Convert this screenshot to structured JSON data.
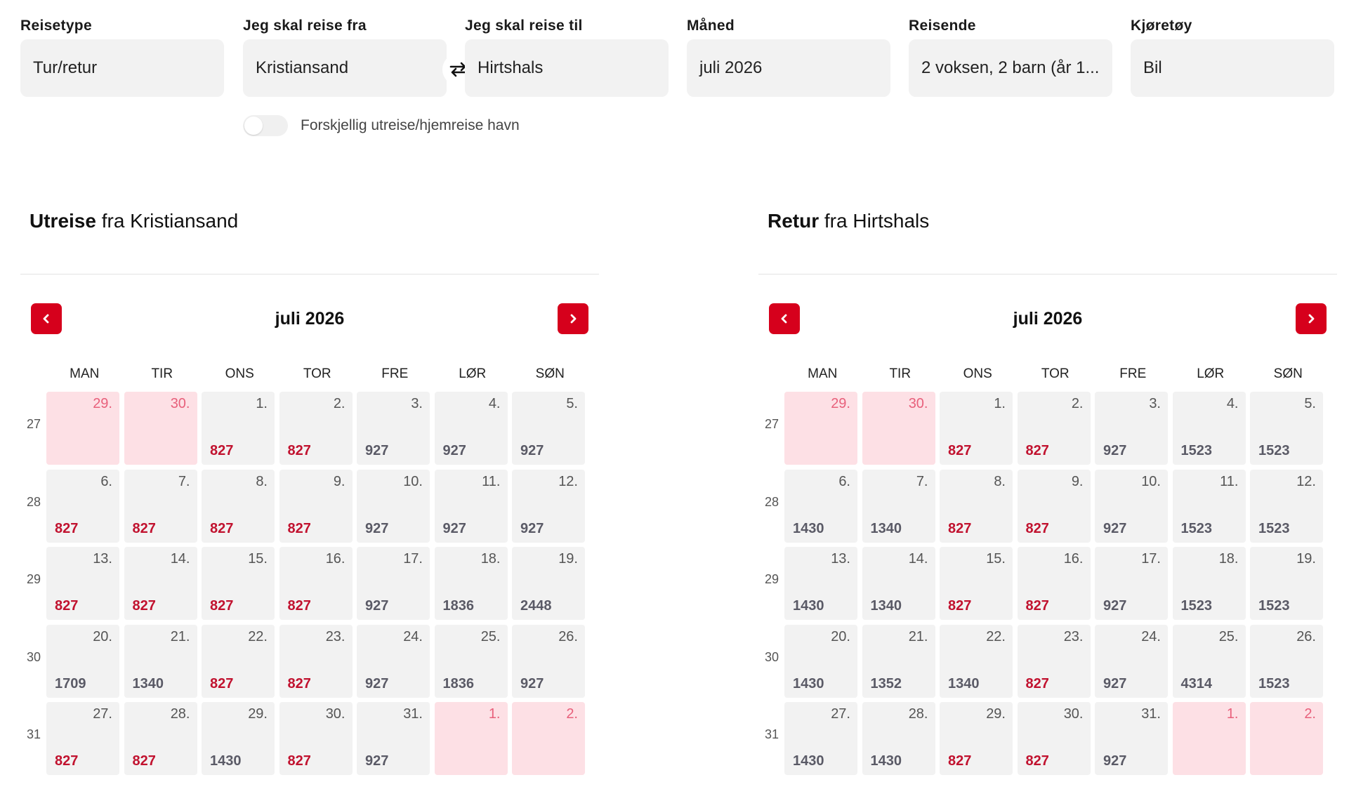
{
  "search": {
    "trip_type": {
      "label": "Reisetype",
      "value": "Tur/retur"
    },
    "from": {
      "label": "Jeg skal reise fra",
      "value": "Kristiansand"
    },
    "to": {
      "label": "Jeg skal reise til",
      "value": "Hirtshals"
    },
    "month": {
      "label": "Måned",
      "value": "juli 2026"
    },
    "travellers": {
      "label": "Reisende",
      "value": "2 voksen, 2 barn (år 1..."
    },
    "vehicle": {
      "label": "Kjøretøy",
      "value": "Bil"
    },
    "swap_icon": "swap-arrows-icon",
    "different_port_toggle": {
      "label": "Forskjellig utreise/hjemreise havn",
      "on": false
    }
  },
  "colors": {
    "accent": "#d6001c",
    "low_price": "#c1122f",
    "normal_price": "#5a5a66",
    "unavailable_bg": "#fde0e5",
    "day_bg": "#f2f2f2"
  },
  "weekdays": [
    "MAN",
    "TIR",
    "ONS",
    "TOR",
    "FRE",
    "LØR",
    "SØN"
  ],
  "outbound": {
    "title_bold": "Utreise",
    "title_rest": "fra Kristiansand",
    "month_label": "juli 2026",
    "prev_icon": "chevron-left-icon",
    "next_icon": "chevron-right-icon",
    "weeks": [
      {
        "num": "27",
        "days": [
          {
            "d": "29.",
            "price": "",
            "disabled": true,
            "low": false
          },
          {
            "d": "30.",
            "price": "",
            "disabled": true,
            "low": false
          },
          {
            "d": "1.",
            "price": "827",
            "disabled": false,
            "low": true
          },
          {
            "d": "2.",
            "price": "827",
            "disabled": false,
            "low": true
          },
          {
            "d": "3.",
            "price": "927",
            "disabled": false,
            "low": false
          },
          {
            "d": "4.",
            "price": "927",
            "disabled": false,
            "low": false
          },
          {
            "d": "5.",
            "price": "927",
            "disabled": false,
            "low": false
          }
        ]
      },
      {
        "num": "28",
        "days": [
          {
            "d": "6.",
            "price": "827",
            "disabled": false,
            "low": true
          },
          {
            "d": "7.",
            "price": "827",
            "disabled": false,
            "low": true
          },
          {
            "d": "8.",
            "price": "827",
            "disabled": false,
            "low": true
          },
          {
            "d": "9.",
            "price": "827",
            "disabled": false,
            "low": true
          },
          {
            "d": "10.",
            "price": "927",
            "disabled": false,
            "low": false
          },
          {
            "d": "11.",
            "price": "927",
            "disabled": false,
            "low": false
          },
          {
            "d": "12.",
            "price": "927",
            "disabled": false,
            "low": false
          }
        ]
      },
      {
        "num": "29",
        "days": [
          {
            "d": "13.",
            "price": "827",
            "disabled": false,
            "low": true
          },
          {
            "d": "14.",
            "price": "827",
            "disabled": false,
            "low": true
          },
          {
            "d": "15.",
            "price": "827",
            "disabled": false,
            "low": true
          },
          {
            "d": "16.",
            "price": "827",
            "disabled": false,
            "low": true
          },
          {
            "d": "17.",
            "price": "927",
            "disabled": false,
            "low": false
          },
          {
            "d": "18.",
            "price": "1836",
            "disabled": false,
            "low": false
          },
          {
            "d": "19.",
            "price": "2448",
            "disabled": false,
            "low": false
          }
        ]
      },
      {
        "num": "30",
        "days": [
          {
            "d": "20.",
            "price": "1709",
            "disabled": false,
            "low": false
          },
          {
            "d": "21.",
            "price": "1340",
            "disabled": false,
            "low": false
          },
          {
            "d": "22.",
            "price": "827",
            "disabled": false,
            "low": true
          },
          {
            "d": "23.",
            "price": "827",
            "disabled": false,
            "low": true
          },
          {
            "d": "24.",
            "price": "927",
            "disabled": false,
            "low": false
          },
          {
            "d": "25.",
            "price": "1836",
            "disabled": false,
            "low": false
          },
          {
            "d": "26.",
            "price": "927",
            "disabled": false,
            "low": false
          }
        ]
      },
      {
        "num": "31",
        "days": [
          {
            "d": "27.",
            "price": "827",
            "disabled": false,
            "low": true
          },
          {
            "d": "28.",
            "price": "827",
            "disabled": false,
            "low": true
          },
          {
            "d": "29.",
            "price": "1430",
            "disabled": false,
            "low": false
          },
          {
            "d": "30.",
            "price": "827",
            "disabled": false,
            "low": true
          },
          {
            "d": "31.",
            "price": "927",
            "disabled": false,
            "low": false
          },
          {
            "d": "1.",
            "price": "",
            "disabled": true,
            "low": false
          },
          {
            "d": "2.",
            "price": "",
            "disabled": true,
            "low": false
          }
        ]
      }
    ]
  },
  "return": {
    "title_bold": "Retur",
    "title_rest": "fra Hirtshals",
    "month_label": "juli 2026",
    "prev_icon": "chevron-left-icon",
    "next_icon": "chevron-right-icon",
    "weeks": [
      {
        "num": "27",
        "days": [
          {
            "d": "29.",
            "price": "",
            "disabled": true,
            "low": false
          },
          {
            "d": "30.",
            "price": "",
            "disabled": true,
            "low": false
          },
          {
            "d": "1.",
            "price": "827",
            "disabled": false,
            "low": true
          },
          {
            "d": "2.",
            "price": "827",
            "disabled": false,
            "low": true
          },
          {
            "d": "3.",
            "price": "927",
            "disabled": false,
            "low": false
          },
          {
            "d": "4.",
            "price": "1523",
            "disabled": false,
            "low": false
          },
          {
            "d": "5.",
            "price": "1523",
            "disabled": false,
            "low": false
          }
        ]
      },
      {
        "num": "28",
        "days": [
          {
            "d": "6.",
            "price": "1430",
            "disabled": false,
            "low": false
          },
          {
            "d": "7.",
            "price": "1340",
            "disabled": false,
            "low": false
          },
          {
            "d": "8.",
            "price": "827",
            "disabled": false,
            "low": true
          },
          {
            "d": "9.",
            "price": "827",
            "disabled": false,
            "low": true
          },
          {
            "d": "10.",
            "price": "927",
            "disabled": false,
            "low": false
          },
          {
            "d": "11.",
            "price": "1523",
            "disabled": false,
            "low": false
          },
          {
            "d": "12.",
            "price": "1523",
            "disabled": false,
            "low": false
          }
        ]
      },
      {
        "num": "29",
        "days": [
          {
            "d": "13.",
            "price": "1430",
            "disabled": false,
            "low": false
          },
          {
            "d": "14.",
            "price": "1340",
            "disabled": false,
            "low": false
          },
          {
            "d": "15.",
            "price": "827",
            "disabled": false,
            "low": true
          },
          {
            "d": "16.",
            "price": "827",
            "disabled": false,
            "low": true
          },
          {
            "d": "17.",
            "price": "927",
            "disabled": false,
            "low": false
          },
          {
            "d": "18.",
            "price": "1523",
            "disabled": false,
            "low": false
          },
          {
            "d": "19.",
            "price": "1523",
            "disabled": false,
            "low": false
          }
        ]
      },
      {
        "num": "30",
        "days": [
          {
            "d": "20.",
            "price": "1430",
            "disabled": false,
            "low": false
          },
          {
            "d": "21.",
            "price": "1352",
            "disabled": false,
            "low": false
          },
          {
            "d": "22.",
            "price": "1340",
            "disabled": false,
            "low": false
          },
          {
            "d": "23.",
            "price": "827",
            "disabled": false,
            "low": true
          },
          {
            "d": "24.",
            "price": "927",
            "disabled": false,
            "low": false
          },
          {
            "d": "25.",
            "price": "4314",
            "disabled": false,
            "low": false
          },
          {
            "d": "26.",
            "price": "1523",
            "disabled": false,
            "low": false
          }
        ]
      },
      {
        "num": "31",
        "days": [
          {
            "d": "27.",
            "price": "1430",
            "disabled": false,
            "low": false
          },
          {
            "d": "28.",
            "price": "1430",
            "disabled": false,
            "low": false
          },
          {
            "d": "29.",
            "price": "827",
            "disabled": false,
            "low": true
          },
          {
            "d": "30.",
            "price": "827",
            "disabled": false,
            "low": true
          },
          {
            "d": "31.",
            "price": "927",
            "disabled": false,
            "low": false
          },
          {
            "d": "1.",
            "price": "",
            "disabled": true,
            "low": false
          },
          {
            "d": "2.",
            "price": "",
            "disabled": true,
            "low": false
          }
        ]
      }
    ]
  }
}
